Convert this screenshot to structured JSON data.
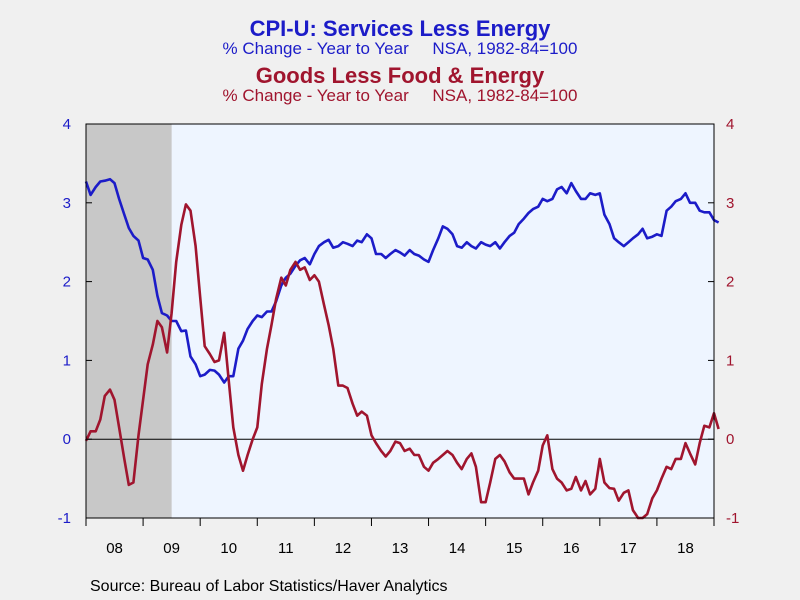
{
  "chart_data": {
    "type": "line",
    "titles": [
      {
        "title": "CPI-U: Services Less Energy",
        "subtitle": "% Change - Year to Year     NSA, 1982-84=100",
        "color": "#1c1cc8"
      },
      {
        "title": "Goods Less Food & Energy",
        "subtitle": "% Change - Year to Year     NSA, 1982-84=100",
        "color": "#a0152e"
      }
    ],
    "x_ticks": [
      "08",
      "09",
      "10",
      "11",
      "12",
      "13",
      "14",
      "15",
      "16",
      "17",
      "18"
    ],
    "x_range": [
      2008.0,
      2019.0
    ],
    "y_left": {
      "range": [
        -1,
        4
      ],
      "ticks": [
        "-1",
        "0",
        "1",
        "2",
        "3",
        "4"
      ],
      "color": "#1c1cc8"
    },
    "y_right": {
      "range": [
        -1,
        4
      ],
      "ticks": [
        "-1",
        "0",
        "1",
        "2",
        "3",
        "4"
      ],
      "color": "#a0152e"
    },
    "recession_shading": [
      2008.0,
      2009.5
    ],
    "zero_line": 0,
    "series": [
      {
        "color": "#1c1cc8",
        "points": [
          [
            2008.0,
            3.27
          ],
          [
            2008.08,
            3.1
          ],
          [
            2008.17,
            3.2
          ],
          [
            2008.25,
            3.27
          ],
          [
            2008.33,
            3.28
          ],
          [
            2008.42,
            3.3
          ],
          [
            2008.5,
            3.25
          ],
          [
            2008.58,
            3.05
          ],
          [
            2008.67,
            2.85
          ],
          [
            2008.75,
            2.68
          ],
          [
            2008.83,
            2.58
          ],
          [
            2008.92,
            2.52
          ],
          [
            2009.0,
            2.3
          ],
          [
            2009.08,
            2.28
          ],
          [
            2009.17,
            2.15
          ],
          [
            2009.25,
            1.82
          ],
          [
            2009.33,
            1.6
          ],
          [
            2009.42,
            1.57
          ],
          [
            2009.5,
            1.5
          ],
          [
            2009.58,
            1.5
          ],
          [
            2009.67,
            1.37
          ],
          [
            2009.75,
            1.38
          ],
          [
            2009.83,
            1.05
          ],
          [
            2009.92,
            0.95
          ],
          [
            2010.0,
            0.8
          ],
          [
            2010.08,
            0.82
          ],
          [
            2010.17,
            0.88
          ],
          [
            2010.25,
            0.87
          ],
          [
            2010.33,
            0.82
          ],
          [
            2010.42,
            0.72
          ],
          [
            2010.5,
            0.8
          ],
          [
            2010.58,
            0.8
          ],
          [
            2010.67,
            1.15
          ],
          [
            2010.75,
            1.25
          ],
          [
            2010.83,
            1.4
          ],
          [
            2010.92,
            1.5
          ],
          [
            2011.0,
            1.57
          ],
          [
            2011.08,
            1.55
          ],
          [
            2011.17,
            1.62
          ],
          [
            2011.25,
            1.62
          ],
          [
            2011.33,
            1.75
          ],
          [
            2011.42,
            1.95
          ],
          [
            2011.5,
            2.05
          ],
          [
            2011.58,
            2.1
          ],
          [
            2011.67,
            2.2
          ],
          [
            2011.75,
            2.27
          ],
          [
            2011.83,
            2.3
          ],
          [
            2011.92,
            2.22
          ],
          [
            2012.0,
            2.35
          ],
          [
            2012.08,
            2.45
          ],
          [
            2012.17,
            2.5
          ],
          [
            2012.25,
            2.53
          ],
          [
            2012.33,
            2.43
          ],
          [
            2012.42,
            2.45
          ],
          [
            2012.5,
            2.5
          ],
          [
            2012.58,
            2.48
          ],
          [
            2012.67,
            2.45
          ],
          [
            2012.75,
            2.52
          ],
          [
            2012.83,
            2.5
          ],
          [
            2012.92,
            2.6
          ],
          [
            2013.0,
            2.55
          ],
          [
            2013.08,
            2.35
          ],
          [
            2013.17,
            2.35
          ],
          [
            2013.25,
            2.3
          ],
          [
            2013.33,
            2.35
          ],
          [
            2013.42,
            2.4
          ],
          [
            2013.5,
            2.37
          ],
          [
            2013.58,
            2.33
          ],
          [
            2013.67,
            2.4
          ],
          [
            2013.75,
            2.35
          ],
          [
            2013.83,
            2.33
          ],
          [
            2013.92,
            2.28
          ],
          [
            2014.0,
            2.25
          ],
          [
            2014.08,
            2.4
          ],
          [
            2014.17,
            2.55
          ],
          [
            2014.25,
            2.7
          ],
          [
            2014.33,
            2.67
          ],
          [
            2014.42,
            2.6
          ],
          [
            2014.5,
            2.45
          ],
          [
            2014.58,
            2.43
          ],
          [
            2014.67,
            2.5
          ],
          [
            2014.75,
            2.45
          ],
          [
            2014.83,
            2.42
          ],
          [
            2014.92,
            2.5
          ],
          [
            2015.0,
            2.47
          ],
          [
            2015.08,
            2.45
          ],
          [
            2015.17,
            2.5
          ],
          [
            2015.25,
            2.42
          ],
          [
            2015.33,
            2.5
          ],
          [
            2015.42,
            2.58
          ],
          [
            2015.5,
            2.62
          ],
          [
            2015.58,
            2.73
          ],
          [
            2015.67,
            2.8
          ],
          [
            2015.75,
            2.87
          ],
          [
            2015.83,
            2.92
          ],
          [
            2015.92,
            2.95
          ],
          [
            2016.0,
            3.05
          ],
          [
            2016.08,
            3.02
          ],
          [
            2016.17,
            3.05
          ],
          [
            2016.25,
            3.17
          ],
          [
            2016.33,
            3.2
          ],
          [
            2016.42,
            3.12
          ],
          [
            2016.5,
            3.25
          ],
          [
            2016.58,
            3.15
          ],
          [
            2016.67,
            3.05
          ],
          [
            2016.75,
            3.05
          ],
          [
            2016.83,
            3.12
          ],
          [
            2016.92,
            3.1
          ],
          [
            2017.0,
            3.12
          ],
          [
            2017.08,
            2.85
          ],
          [
            2017.17,
            2.73
          ],
          [
            2017.25,
            2.55
          ],
          [
            2017.33,
            2.5
          ],
          [
            2017.42,
            2.45
          ],
          [
            2017.5,
            2.5
          ],
          [
            2017.58,
            2.55
          ],
          [
            2017.67,
            2.6
          ],
          [
            2017.75,
            2.67
          ],
          [
            2017.83,
            2.55
          ],
          [
            2017.92,
            2.57
          ],
          [
            2018.0,
            2.6
          ],
          [
            2018.08,
            2.58
          ],
          [
            2018.17,
            2.9
          ],
          [
            2018.25,
            2.95
          ],
          [
            2018.33,
            3.02
          ],
          [
            2018.42,
            3.05
          ],
          [
            2018.5,
            3.12
          ],
          [
            2018.58,
            3.0
          ],
          [
            2018.67,
            3.0
          ],
          [
            2018.75,
            2.9
          ],
          [
            2018.83,
            2.88
          ],
          [
            2018.92,
            2.88
          ],
          [
            2019.0,
            2.78
          ],
          [
            2019.08,
            2.75
          ]
        ]
      },
      {
        "color": "#a0152e",
        "points": [
          [
            2008.0,
            -0.02
          ],
          [
            2008.08,
            0.1
          ],
          [
            2008.17,
            0.1
          ],
          [
            2008.25,
            0.25
          ],
          [
            2008.33,
            0.55
          ],
          [
            2008.42,
            0.63
          ],
          [
            2008.5,
            0.5
          ],
          [
            2008.58,
            0.15
          ],
          [
            2008.67,
            -0.25
          ],
          [
            2008.75,
            -0.58
          ],
          [
            2008.83,
            -0.55
          ],
          [
            2008.92,
            0.05
          ],
          [
            2009.0,
            0.5
          ],
          [
            2009.08,
            0.95
          ],
          [
            2009.17,
            1.2
          ],
          [
            2009.25,
            1.5
          ],
          [
            2009.33,
            1.42
          ],
          [
            2009.42,
            1.1
          ],
          [
            2009.5,
            1.6
          ],
          [
            2009.58,
            2.25
          ],
          [
            2009.67,
            2.72
          ],
          [
            2009.75,
            2.98
          ],
          [
            2009.83,
            2.9
          ],
          [
            2009.92,
            2.45
          ],
          [
            2010.0,
            1.8
          ],
          [
            2010.08,
            1.18
          ],
          [
            2010.17,
            1.08
          ],
          [
            2010.25,
            0.98
          ],
          [
            2010.33,
            1.0
          ],
          [
            2010.42,
            1.35
          ],
          [
            2010.5,
            0.75
          ],
          [
            2010.58,
            0.15
          ],
          [
            2010.67,
            -0.2
          ],
          [
            2010.75,
            -0.4
          ],
          [
            2010.83,
            -0.2
          ],
          [
            2010.92,
            0.0
          ],
          [
            2011.0,
            0.15
          ],
          [
            2011.08,
            0.7
          ],
          [
            2011.17,
            1.15
          ],
          [
            2011.25,
            1.45
          ],
          [
            2011.33,
            1.78
          ],
          [
            2011.42,
            2.05
          ],
          [
            2011.5,
            1.95
          ],
          [
            2011.58,
            2.15
          ],
          [
            2011.67,
            2.25
          ],
          [
            2011.75,
            2.15
          ],
          [
            2011.83,
            2.18
          ],
          [
            2011.92,
            2.02
          ],
          [
            2012.0,
            2.08
          ],
          [
            2012.08,
            2.0
          ],
          [
            2012.17,
            1.7
          ],
          [
            2012.25,
            1.45
          ],
          [
            2012.33,
            1.15
          ],
          [
            2012.42,
            0.68
          ],
          [
            2012.5,
            0.68
          ],
          [
            2012.58,
            0.65
          ],
          [
            2012.67,
            0.45
          ],
          [
            2012.75,
            0.3
          ],
          [
            2012.83,
            0.35
          ],
          [
            2012.92,
            0.3
          ],
          [
            2013.0,
            0.05
          ],
          [
            2013.08,
            -0.05
          ],
          [
            2013.17,
            -0.15
          ],
          [
            2013.25,
            -0.22
          ],
          [
            2013.33,
            -0.15
          ],
          [
            2013.42,
            -0.03
          ],
          [
            2013.5,
            -0.05
          ],
          [
            2013.58,
            -0.15
          ],
          [
            2013.67,
            -0.12
          ],
          [
            2013.75,
            -0.2
          ],
          [
            2013.83,
            -0.2
          ],
          [
            2013.92,
            -0.35
          ],
          [
            2014.0,
            -0.4
          ],
          [
            2014.08,
            -0.3
          ],
          [
            2014.17,
            -0.25
          ],
          [
            2014.25,
            -0.2
          ],
          [
            2014.33,
            -0.15
          ],
          [
            2014.42,
            -0.2
          ],
          [
            2014.5,
            -0.3
          ],
          [
            2014.58,
            -0.38
          ],
          [
            2014.67,
            -0.25
          ],
          [
            2014.75,
            -0.18
          ],
          [
            2014.83,
            -0.35
          ],
          [
            2014.92,
            -0.8
          ],
          [
            2015.0,
            -0.8
          ],
          [
            2015.08,
            -0.55
          ],
          [
            2015.17,
            -0.25
          ],
          [
            2015.25,
            -0.2
          ],
          [
            2015.33,
            -0.28
          ],
          [
            2015.42,
            -0.42
          ],
          [
            2015.5,
            -0.5
          ],
          [
            2015.58,
            -0.5
          ],
          [
            2015.67,
            -0.5
          ],
          [
            2015.75,
            -0.7
          ],
          [
            2015.83,
            -0.55
          ],
          [
            2015.92,
            -0.4
          ],
          [
            2016.0,
            -0.08
          ],
          [
            2016.08,
            0.05
          ],
          [
            2016.17,
            -0.38
          ],
          [
            2016.25,
            -0.5
          ],
          [
            2016.33,
            -0.55
          ],
          [
            2016.42,
            -0.65
          ],
          [
            2016.5,
            -0.63
          ],
          [
            2016.58,
            -0.48
          ],
          [
            2016.67,
            -0.65
          ],
          [
            2016.75,
            -0.53
          ],
          [
            2016.83,
            -0.7
          ],
          [
            2016.92,
            -0.63
          ],
          [
            2017.0,
            -0.25
          ],
          [
            2017.08,
            -0.55
          ],
          [
            2017.17,
            -0.62
          ],
          [
            2017.25,
            -0.63
          ],
          [
            2017.33,
            -0.78
          ],
          [
            2017.42,
            -0.68
          ],
          [
            2017.5,
            -0.65
          ],
          [
            2017.58,
            -0.9
          ],
          [
            2017.67,
            -1.0
          ],
          [
            2017.75,
            -1.0
          ],
          [
            2017.83,
            -0.95
          ],
          [
            2017.92,
            -0.75
          ],
          [
            2018.0,
            -0.65
          ],
          [
            2018.08,
            -0.5
          ],
          [
            2018.17,
            -0.35
          ],
          [
            2018.25,
            -0.38
          ],
          [
            2018.33,
            -0.25
          ],
          [
            2018.42,
            -0.25
          ],
          [
            2018.5,
            -0.05
          ],
          [
            2018.58,
            -0.18
          ],
          [
            2018.67,
            -0.32
          ],
          [
            2018.75,
            -0.05
          ],
          [
            2018.83,
            0.17
          ],
          [
            2018.92,
            0.15
          ],
          [
            2019.0,
            0.33
          ],
          [
            2019.08,
            0.13
          ]
        ]
      }
    ],
    "source": "Source:  Bureau of Labor Statistics/Haver Analytics"
  }
}
